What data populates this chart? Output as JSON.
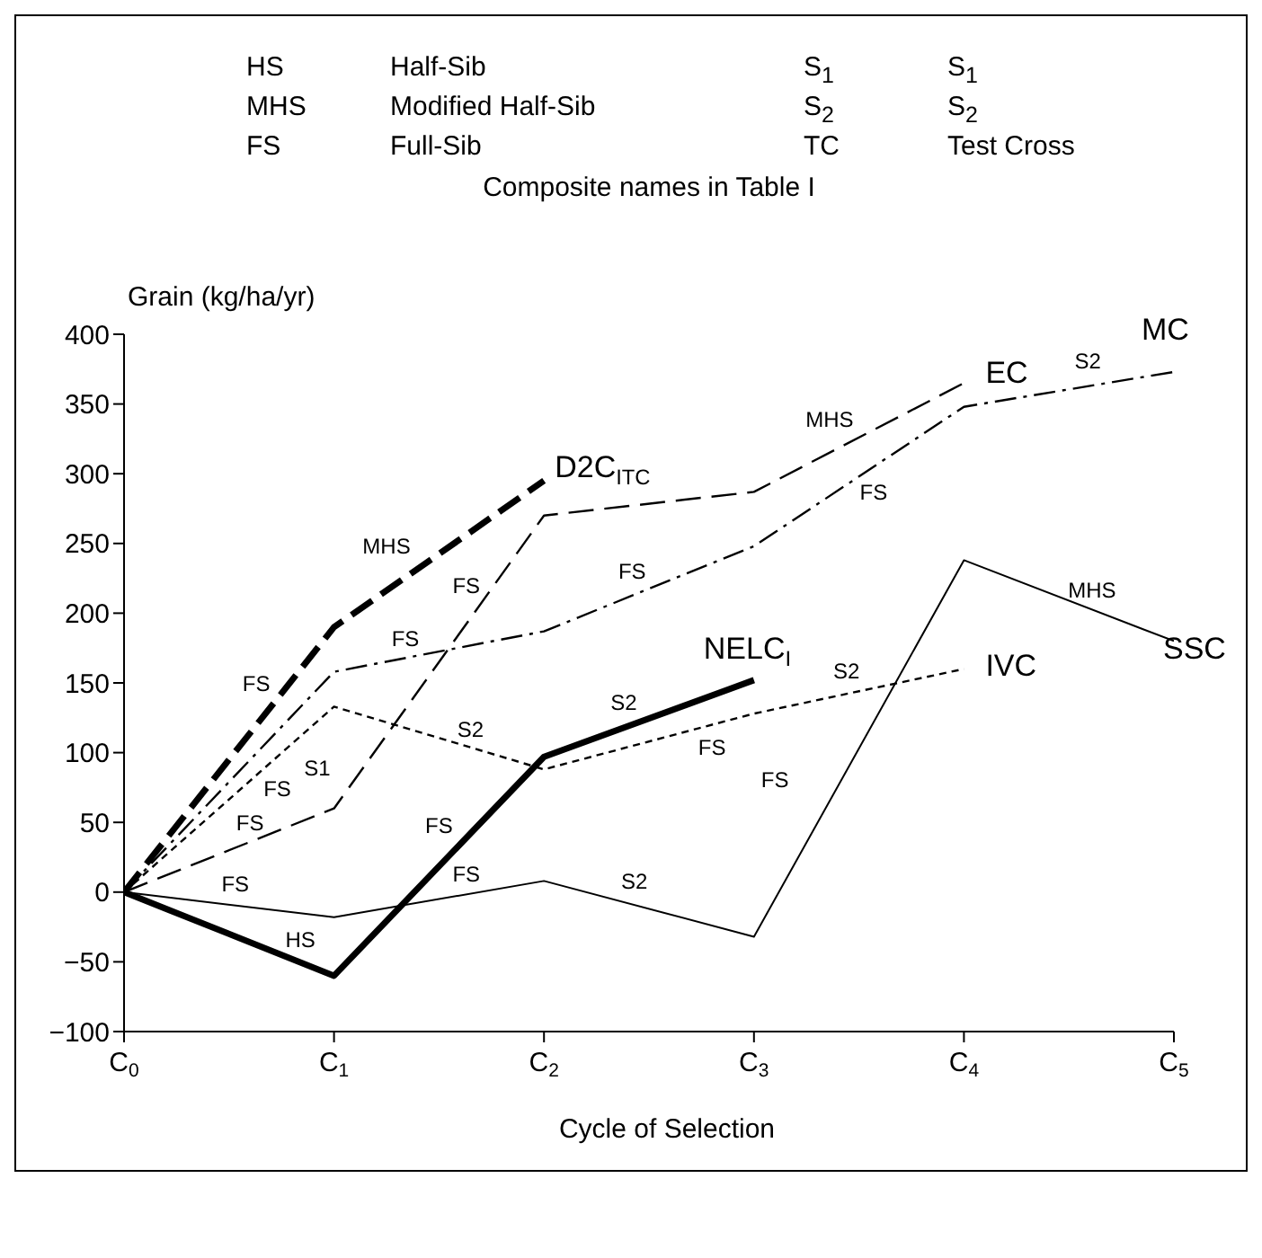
{
  "chart_data": {
    "type": "line",
    "xlabel": "Cycle of Selection",
    "ylabel": "Grain (kg/ha/yr)",
    "categories": [
      "C$_{0}$",
      "C$_{1}$",
      "C$_{2}$",
      "C$_{3}$",
      "C$_{4}$",
      "C$_{5}$"
    ],
    "series": [
      {
        "name": "D2C$_{ITC}$",
        "color": "#000000",
        "line_style": "dashed",
        "values": [
          0,
          190,
          295,
          null,
          null,
          null
        ]
      },
      {
        "name": "EC",
        "color": "#000000",
        "line_style": "dashed",
        "values": [
          0,
          60,
          270,
          287,
          365,
          null
        ]
      },
      {
        "name": "MC",
        "color": "#000000",
        "line_style": "dashdot",
        "values": [
          0,
          158,
          187,
          248,
          348,
          373
        ]
      },
      {
        "name": "IVC",
        "color": "#000000",
        "line_style": "dotted",
        "values": [
          0,
          133,
          88,
          128,
          160,
          null
        ]
      },
      {
        "name": "NELC$_{I}$",
        "color": "#000000",
        "line_style": "solid",
        "values": [
          0,
          -60,
          97,
          152,
          null,
          null
        ]
      },
      {
        "name": "SSC",
        "color": "#000000",
        "line_style": "solid",
        "values": [
          0,
          -18,
          8,
          -32,
          238,
          180
        ]
      }
    ],
    "ylim": [
      -100,
      400
    ],
    "yticks": [
      -100,
      -50,
      0,
      50,
      100,
      150,
      200,
      250,
      300,
      350,
      400
    ],
    "marker": "none",
    "annotations": [
      "HS",
      "Half-Sib",
      "S$_{1}$",
      "S$_{1}$",
      "MHS",
      "Modified Half-Sib",
      "S$_{2}$",
      "S$_{2}$",
      "FS",
      "Full-Sib",
      "TC",
      "Test Cross",
      "Composite names in Table I",
      "MHS",
      "FS",
      "FS",
      "FS",
      "S2",
      "MHS",
      "S2",
      "FS",
      "FS",
      "MHS",
      "S2",
      "S2",
      "FS",
      "S1",
      "FS",
      "FS",
      "HS",
      "FS",
      "FS",
      "S2",
      "FS",
      "FS"
    ]
  }
}
